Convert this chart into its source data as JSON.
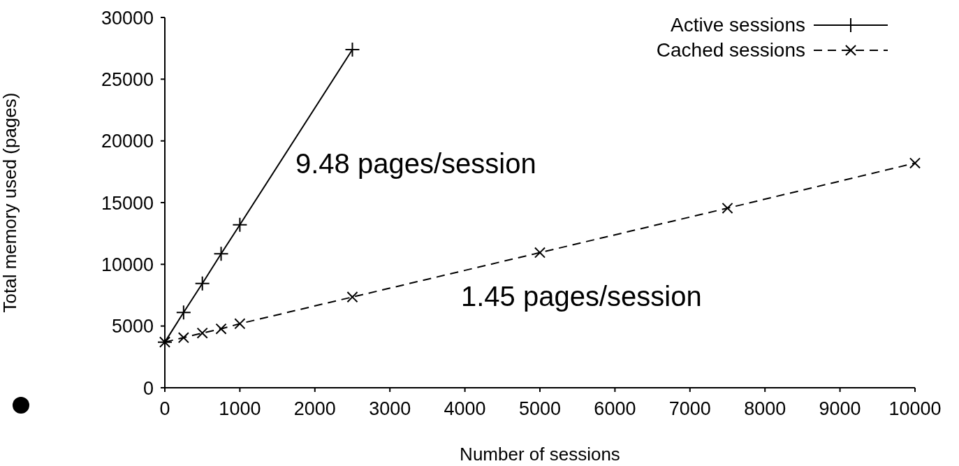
{
  "chart_data": {
    "type": "line",
    "xlabel": "Number of sessions",
    "ylabel": "Total memory used (pages)",
    "xlim": [
      0,
      10000
    ],
    "xticks": [
      0,
      1000,
      2000,
      3000,
      4000,
      5000,
      6000,
      7000,
      8000,
      9000,
      10000
    ],
    "ylim": [
      0,
      30000
    ],
    "yticks": [
      0,
      5000,
      10000,
      15000,
      20000,
      25000,
      30000
    ],
    "legend": "top right",
    "grid": false,
    "series": [
      {
        "name": "Active sessions",
        "color": "#000000",
        "marker": "cross",
        "line_style": "solid",
        "x": [
          0,
          250,
          500,
          750,
          1000,
          2500
        ],
        "values": [
          3700,
          6100,
          8450,
          10850,
          13200,
          27400
        ]
      },
      {
        "name": "Cached sessions",
        "color": "#000000",
        "marker": "x",
        "line_style": "dashed",
        "x": [
          0,
          250,
          500,
          750,
          1000,
          2500,
          5000,
          7500,
          10000
        ],
        "values": [
          3700,
          4060,
          4430,
          4770,
          5190,
          7350,
          10950,
          14550,
          18200
        ]
      }
    ],
    "annotations": [
      "9.48 pages/session",
      "1.45 pages/session"
    ]
  }
}
